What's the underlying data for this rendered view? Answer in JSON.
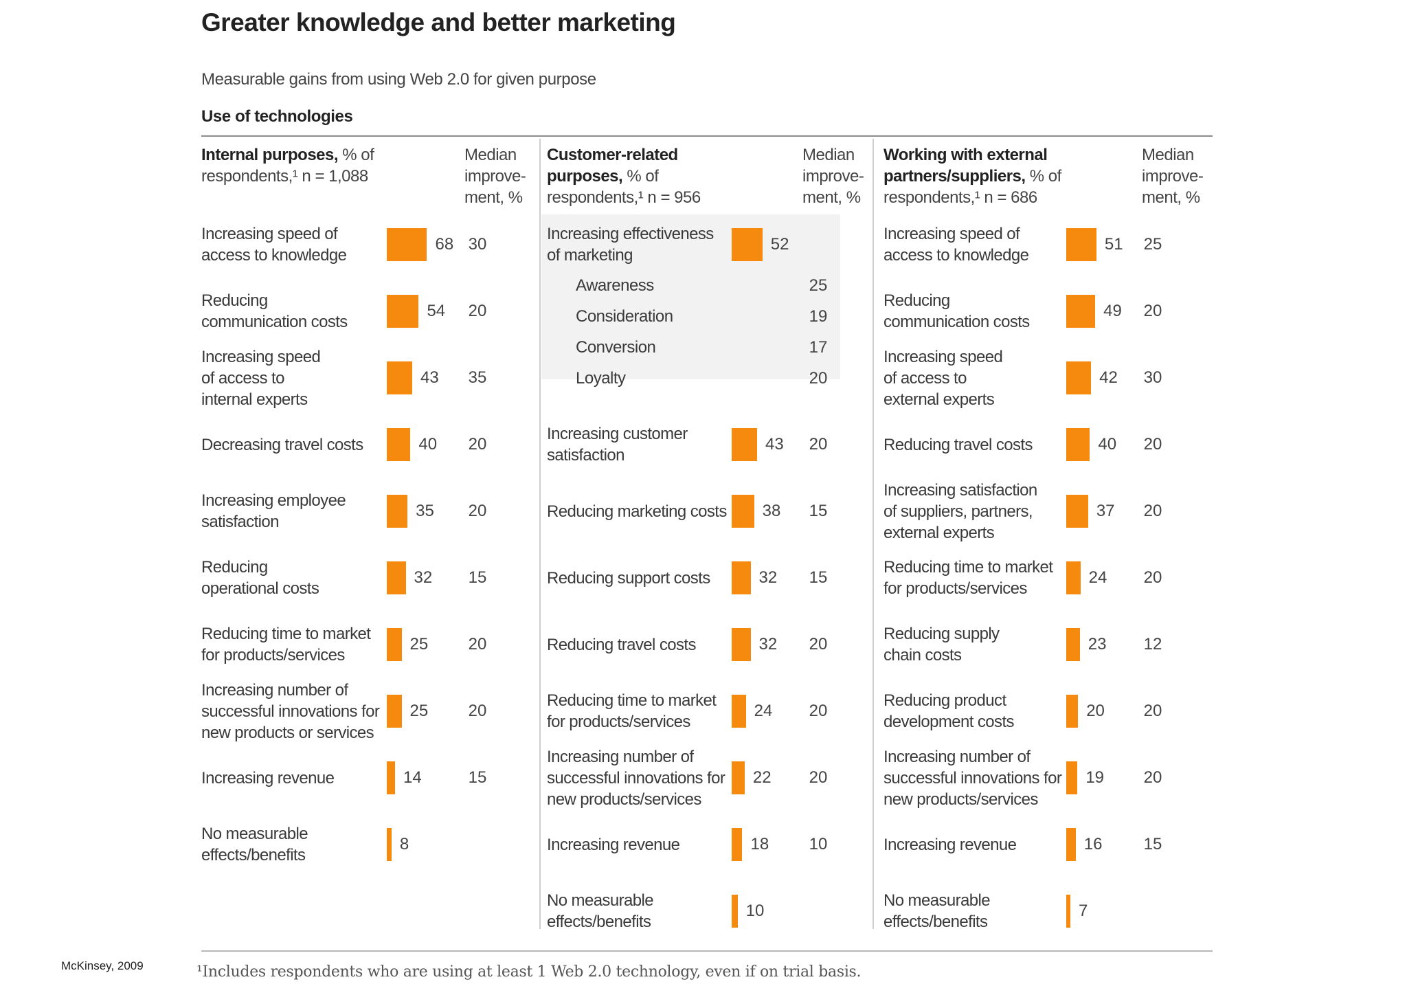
{
  "colors": {
    "bar": "#f58a0f",
    "rule": "#8c8c8c"
  },
  "title": "Greater knowledge and better marketing",
  "subtitle": "Measurable gains from using Web 2.0 for given purpose",
  "section_label": "Use of technologies",
  "median_header": [
    "Median",
    "improve-",
    "ment, %"
  ],
  "footnote": "¹Includes respondents who are using at least 1 Web 2.0 technology, even if on trial basis.",
  "source": "McKinsey, 2009",
  "chart_data": {
    "type": "bar",
    "title": "Greater knowledge and better marketing",
    "subtitle": "Measurable gains from using Web 2.0 for given purpose",
    "panels": [
      {
        "heading_bold": "Internal purposes,",
        "heading_rest": [
          "% of",
          "respondents,¹ n = 1,088"
        ],
        "unit": "% of respondents",
        "rows": [
          {
            "label": [
              "Increasing speed of",
              "access to knowledge"
            ],
            "value": 68,
            "median": "30"
          },
          {
            "label": [
              "Reducing",
              "communication costs"
            ],
            "value": 54,
            "median": "20"
          },
          {
            "label": [
              "Increasing speed",
              "of access to",
              "internal experts"
            ],
            "value": 43,
            "median": "35"
          },
          {
            "label": [
              "Decreasing travel costs"
            ],
            "value": 40,
            "median": "20"
          },
          {
            "label": [
              "Increasing employee",
              "satisfaction"
            ],
            "value": 35,
            "median": "20"
          },
          {
            "label": [
              "Reducing",
              "operational costs"
            ],
            "value": 32,
            "median": "15"
          },
          {
            "label": [
              "Reducing time to market",
              "for products/services"
            ],
            "value": 25,
            "median": "20"
          },
          {
            "label": [
              "Increasing number of",
              "successful innovations for",
              "new products or services"
            ],
            "value": 25,
            "median": "20"
          },
          {
            "label": [
              "Increasing revenue"
            ],
            "value": 14,
            "median": "15"
          },
          {
            "label": [
              "No measurable",
              "effects/benefits"
            ],
            "value": 8,
            "median": ""
          }
        ]
      },
      {
        "heading_bold": "Customer-related purposes,",
        "heading_rest": [
          "% of",
          "respondents,¹ n = 956"
        ],
        "unit": "% of respondents",
        "rows": [
          {
            "label": [
              "Increasing effectiveness",
              "of marketing"
            ],
            "value": 52,
            "median": "",
            "sub": [
              {
                "label": "Awareness",
                "median": "25"
              },
              {
                "label": "Consideration",
                "median": "19"
              },
              {
                "label": "Conversion",
                "median": "17"
              },
              {
                "label": "Loyalty",
                "median": "20"
              }
            ]
          },
          {
            "label": [
              "Increasing customer",
              "satisfaction"
            ],
            "value": 43,
            "median": "20"
          },
          {
            "label": [
              "Reducing marketing costs"
            ],
            "value": 38,
            "median": "15"
          },
          {
            "label": [
              "Reducing support costs"
            ],
            "value": 32,
            "median": "15"
          },
          {
            "label": [
              "Reducing travel costs"
            ],
            "value": 32,
            "median": "20"
          },
          {
            "label": [
              "Reducing time to market",
              "for products/services"
            ],
            "value": 24,
            "median": "20"
          },
          {
            "label": [
              "Increasing number of",
              "successful innovations for",
              "new products/services"
            ],
            "value": 22,
            "median": "20"
          },
          {
            "label": [
              "Increasing revenue"
            ],
            "value": 18,
            "median": "10"
          },
          {
            "label": [
              "No measurable",
              "effects/benefits"
            ],
            "value": 10,
            "median": ""
          }
        ]
      },
      {
        "heading_bold": "Working with external partners/suppliers,",
        "heading_rest": [
          "% of",
          "respondents,¹ n = 686"
        ],
        "unit": "% of respondents",
        "rows": [
          {
            "label": [
              "Increasing speed of",
              "access to knowledge"
            ],
            "value": 51,
            "median": "25"
          },
          {
            "label": [
              "Reducing",
              "communication costs"
            ],
            "value": 49,
            "median": "20"
          },
          {
            "label": [
              "Increasing speed",
              "of access to",
              "external experts"
            ],
            "value": 42,
            "median": "30"
          },
          {
            "label": [
              "Reducing travel costs"
            ],
            "value": 40,
            "median": "20"
          },
          {
            "label": [
              "Increasing satisfaction",
              "of suppliers, partners,",
              "external experts"
            ],
            "value": 37,
            "median": "20"
          },
          {
            "label": [
              "Reducing time to market",
              "for products/services"
            ],
            "value": 24,
            "median": "20"
          },
          {
            "label": [
              "Reducing supply",
              "chain costs"
            ],
            "value": 23,
            "median": "12"
          },
          {
            "label": [
              "Reducing product",
              "development costs"
            ],
            "value": 20,
            "median": "20"
          },
          {
            "label": [
              "Increasing number of",
              "successful innovations for",
              "new products/services"
            ],
            "value": 19,
            "median": "20"
          },
          {
            "label": [
              "Increasing revenue"
            ],
            "value": 16,
            "median": "15"
          },
          {
            "label": [
              "No measurable",
              "effects/benefits"
            ],
            "value": 7,
            "median": ""
          }
        ]
      }
    ]
  }
}
